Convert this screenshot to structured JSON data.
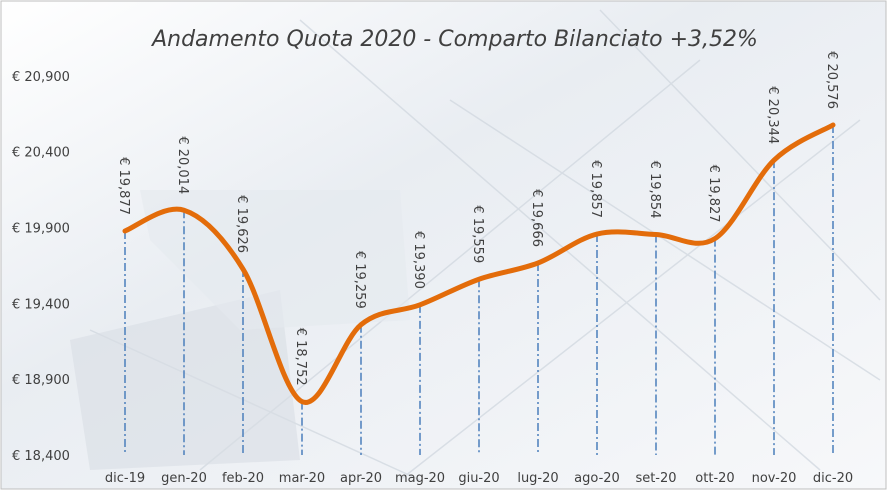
{
  "chart_data": {
    "type": "line",
    "title": "Andamento Quota 2020 - Comparto Bilanciato +3,52%",
    "categories": [
      "dic-19",
      "gen-20",
      "feb-20",
      "mar-20",
      "apr-20",
      "mag-20",
      "giu-20",
      "lug-20",
      "ago-20",
      "set-20",
      "ott-20",
      "nov-20",
      "dic-20"
    ],
    "values": [
      19.877,
      20.014,
      19.626,
      18.752,
      19.259,
      19.39,
      19.559,
      19.666,
      19.857,
      19.854,
      19.827,
      20.344,
      20.576
    ],
    "value_labels": [
      "€ 19,877",
      "€ 20,014",
      "€ 19,626",
      "€ 18,752",
      "€ 19,259",
      "€ 19,390",
      "€ 19,559",
      "€ 19,666",
      "€ 19,857",
      "€ 19,854",
      "€ 19,827",
      "€ 20,344",
      "€ 20,576"
    ],
    "color": "#e36c0a",
    "drop_line_color": "#4a7ebb",
    "ylim": [
      18.4,
      21.4
    ],
    "yticks": [
      {
        "value": 18.4,
        "label": "€ 18,400"
      },
      {
        "value": 18.9,
        "label": "€ 18,900"
      },
      {
        "value": 19.4,
        "label": "€ 19,400"
      },
      {
        "value": 19.9,
        "label": "€ 19,900"
      },
      {
        "value": 20.4,
        "label": "€ 20,400"
      },
      {
        "value": 20.9,
        "label": "€ 20,900"
      }
    ],
    "grid": false
  }
}
